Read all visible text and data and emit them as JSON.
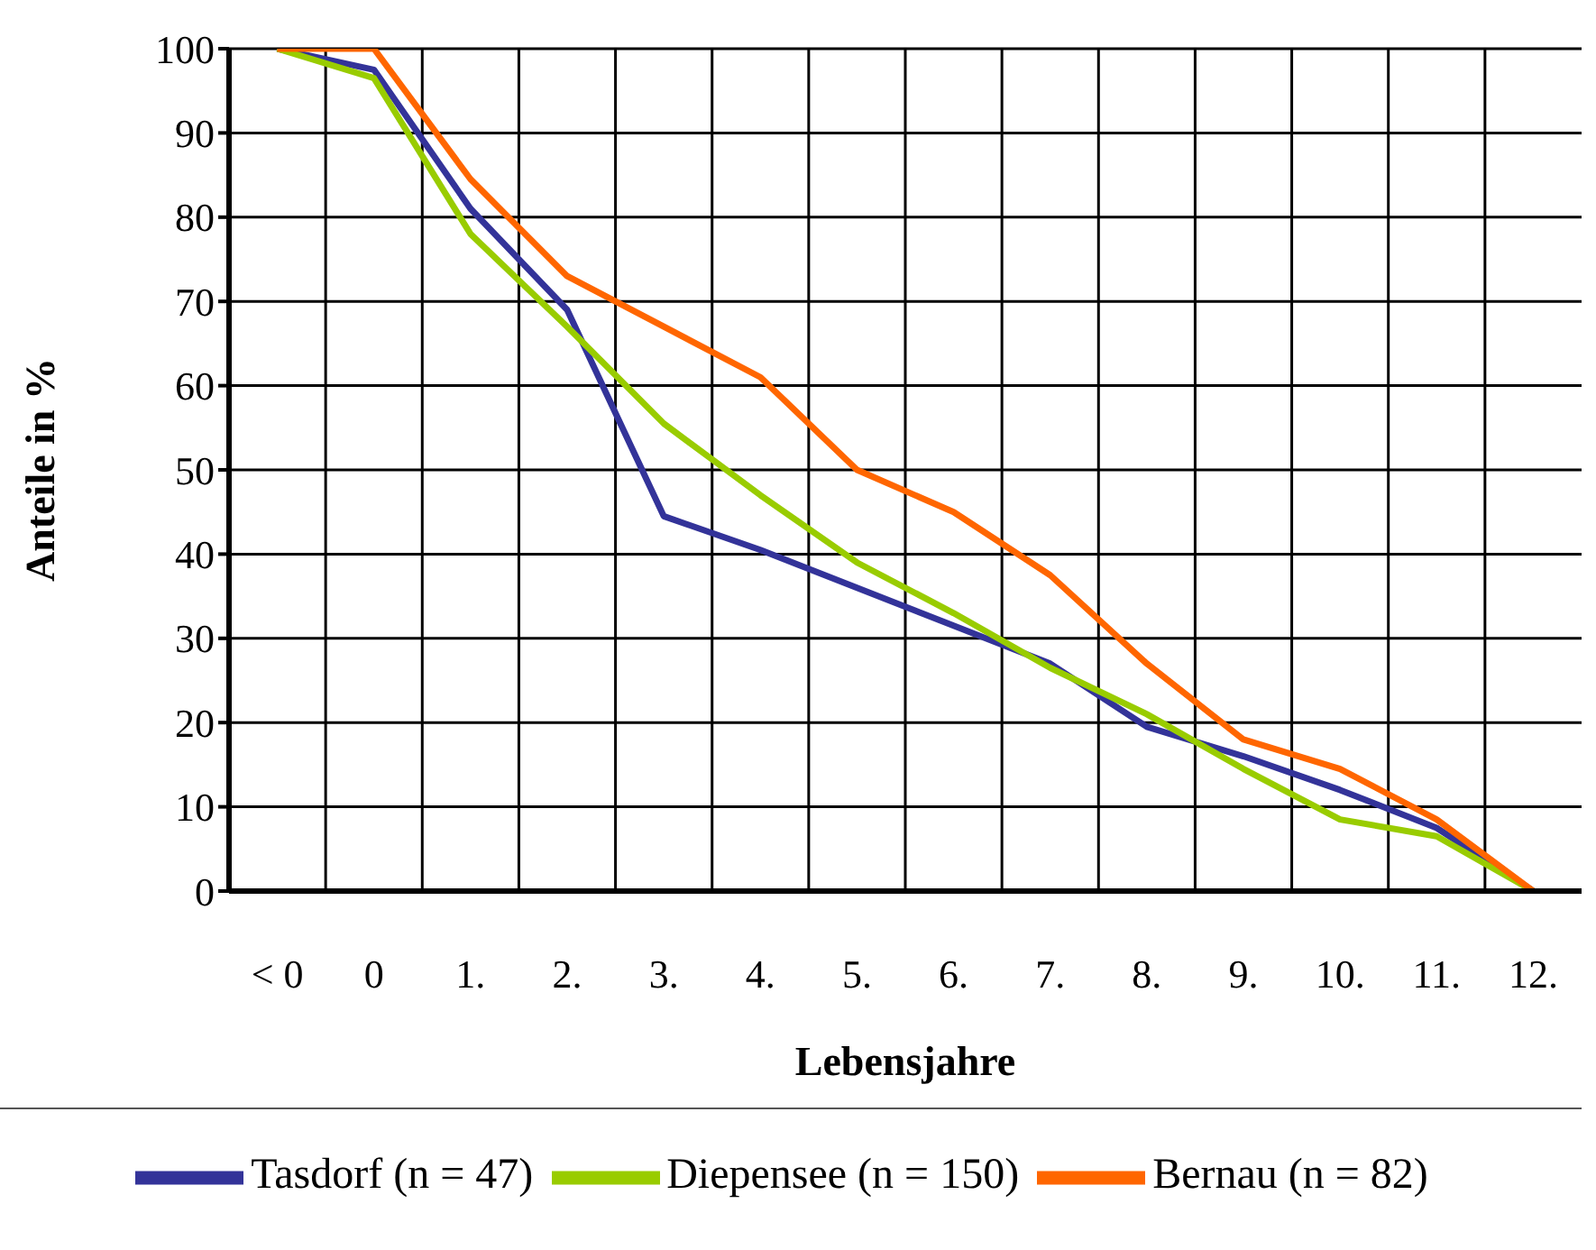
{
  "chart_data": {
    "type": "line",
    "xlabel": "Lebensjahre",
    "ylabel": "Anteile in %",
    "categories": [
      "< 0",
      "0",
      "1.",
      "2.",
      "3.",
      "4.",
      "5.",
      "6.",
      "7.",
      "8.",
      "9.",
      "10.",
      "11.",
      "12."
    ],
    "series": [
      {
        "name": "Tasdorf (n = 47)",
        "color": "#333399",
        "values": [
          100,
          97.5,
          81,
          69,
          44.5,
          40.5,
          36,
          31.5,
          27,
          19.5,
          16,
          12,
          7.5,
          0
        ]
      },
      {
        "name": "Diepensee (n = 150)",
        "color": "#99cc00",
        "values": [
          100,
          96.5,
          78,
          67,
          55.5,
          47,
          39,
          33,
          26.5,
          21,
          14.5,
          8.5,
          6.5,
          0
        ]
      },
      {
        "name": "Bernau (n = 82)",
        "color": "#ff6600",
        "values": [
          100,
          100,
          84.5,
          73,
          67,
          61,
          50,
          45,
          37.5,
          27,
          18,
          14.5,
          8.5,
          0
        ]
      }
    ],
    "ylim": [
      0,
      100
    ],
    "yticks": [
      0,
      10,
      20,
      30,
      40,
      50,
      60,
      70,
      80,
      90,
      100
    ],
    "grid": true,
    "legend": "bottom",
    "marker": "none",
    "line_style": "solid"
  }
}
